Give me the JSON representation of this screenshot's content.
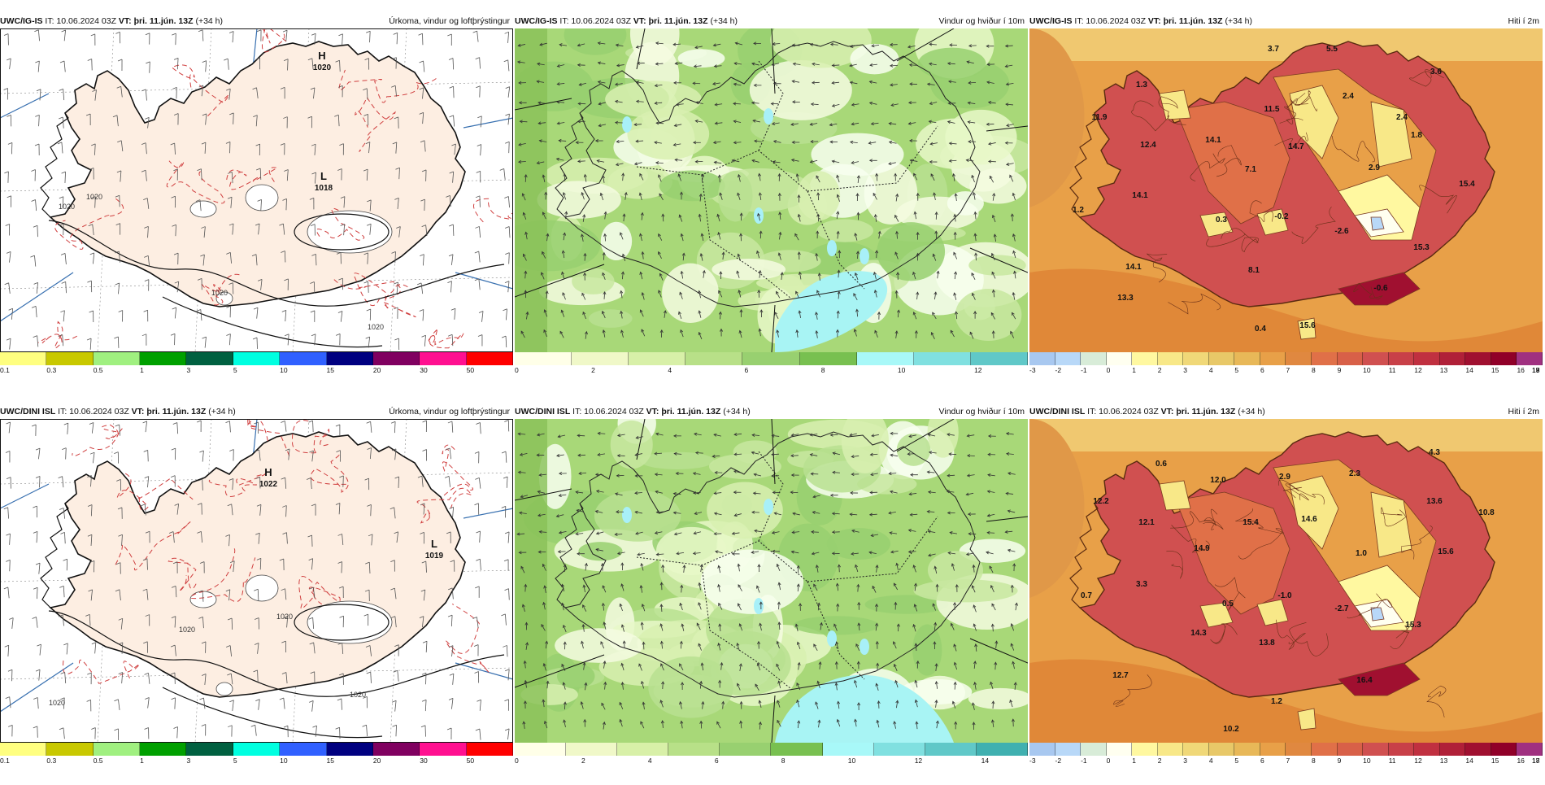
{
  "panels": [
    {
      "id": "p1",
      "model": "UWC/IG-IS",
      "it_label": "IT: 10.06.2024 03Z",
      "vt_label": "VT: þri. 11.jún. 13Z",
      "lead": "(+34 h)",
      "title": "Úrkoma, vindur og loftþrýstingur",
      "kind": "precip",
      "pressure_centers": [
        {
          "type": "H",
          "value": "1020"
        },
        {
          "type": "L",
          "value": "1018"
        }
      ],
      "isobar_labels": [
        "1020",
        "1020",
        "1020",
        "1020"
      ],
      "colorbar": {
        "colors": [
          "#ffff80",
          "#c8c800",
          "#a0f080",
          "#00a000",
          "#006040",
          "#00ffe0",
          "#3060ff",
          "#000080",
          "#800060",
          "#ff1090",
          "#ff0000"
        ],
        "ticks": [
          "0.1",
          "0.3",
          "0.5",
          "1",
          "3",
          "5",
          "10",
          "15",
          "20",
          "30",
          "50"
        ]
      }
    },
    {
      "id": "p2",
      "model": "UWC/IG-IS",
      "it_label": "IT: 10.06.2024 03Z",
      "vt_label": "VT: þri. 11.jún. 13Z",
      "lead": "(+34 h)",
      "title": "Vindur og hviður í 10m",
      "kind": "wind",
      "colorbar": {
        "colors": [
          "#ffffe8",
          "#f0f8c8",
          "#d8f0a8",
          "#b8e088",
          "#98d070",
          "#78c050",
          "#a8f8f8",
          "#80e0e0",
          "#60c8c8"
        ],
        "ticks": [
          "0",
          "2",
          "4",
          "6",
          "8",
          "10",
          "12"
        ]
      }
    },
    {
      "id": "p3",
      "model": "UWC/IG-IS",
      "it_label": "IT: 10.06.2024 03Z",
      "vt_label": "VT: þri. 11.jún. 13Z",
      "lead": "(+34 h)",
      "title": "Hiti í 2m",
      "kind": "temp",
      "temps": [
        {
          "v": "3.7"
        },
        {
          "v": "5.5"
        },
        {
          "v": "1.3"
        },
        {
          "v": "3.6"
        },
        {
          "v": "11.9"
        },
        {
          "v": "11.5"
        },
        {
          "v": "2.4"
        },
        {
          "v": "12.4"
        },
        {
          "v": "14.1"
        },
        {
          "v": "14.7"
        },
        {
          "v": "2.4"
        },
        {
          "v": "1.8"
        },
        {
          "v": "7.1"
        },
        {
          "v": "2.9"
        },
        {
          "v": "14.1"
        },
        {
          "v": "15.4"
        },
        {
          "v": "1.2"
        },
        {
          "v": "0.3"
        },
        {
          "v": "-0.2"
        },
        {
          "v": "-2.6"
        },
        {
          "v": "15.3"
        },
        {
          "v": "14.1"
        },
        {
          "v": "8.1"
        },
        {
          "v": "-0.6"
        },
        {
          "v": "13.3"
        },
        {
          "v": "15.6"
        },
        {
          "v": "0.4"
        }
      ],
      "colorbar": {
        "colors": [
          "#a8c8f0",
          "#b8d8f8",
          "#d8ecd8",
          "#fffff0",
          "#fff8a0",
          "#f8e888",
          "#f0d878",
          "#e8c868",
          "#e8b858",
          "#e8a048",
          "#e08840",
          "#e07048",
          "#d86048",
          "#d05050",
          "#c84048",
          "#c03040",
          "#b02038",
          "#a01030",
          "#900028",
          "#a03080"
        ],
        "ticks": [
          "-3",
          "-2",
          "-1",
          "0",
          "1",
          "2",
          "3",
          "4",
          "5",
          "6",
          "7",
          "8",
          "9",
          "10",
          "11",
          "12",
          "13",
          "14",
          "15",
          "16",
          "17",
          "18",
          "19"
        ]
      }
    },
    {
      "id": "p4",
      "model": "UWC/DINI ISL",
      "it_label": "IT: 10.06.2024 03Z",
      "vt_label": "VT: þri. 11.jún. 13Z",
      "lead": "(+34 h)",
      "title": "Úrkoma, vindur og loftþrýstingur",
      "kind": "precip",
      "pressure_centers": [
        {
          "type": "H",
          "value": "1022"
        },
        {
          "type": "L",
          "value": "1019"
        }
      ],
      "isobar_labels": [
        "1020",
        "1020",
        "1020",
        "1020"
      ],
      "colorbar": {
        "colors": [
          "#ffff80",
          "#c8c800",
          "#a0f080",
          "#00a000",
          "#006040",
          "#00ffe0",
          "#3060ff",
          "#000080",
          "#800060",
          "#ff1090",
          "#ff0000"
        ],
        "ticks": [
          "0.1",
          "0.3",
          "0.5",
          "1",
          "3",
          "5",
          "10",
          "15",
          "20",
          "30",
          "50"
        ]
      }
    },
    {
      "id": "p5",
      "model": "UWC/DINI ISL",
      "it_label": "IT: 10.06.2024 03Z",
      "vt_label": "VT: þri. 11.jún. 13Z",
      "lead": "(+34 h)",
      "title": "Vindur og hviður í 10m",
      "kind": "wind",
      "colorbar": {
        "colors": [
          "#ffffe8",
          "#f0f8c8",
          "#d8f0a8",
          "#b8e088",
          "#98d070",
          "#78c050",
          "#a8f8f8",
          "#80e0e0",
          "#60c8c8",
          "#40b0b0"
        ],
        "ticks": [
          "0",
          "2",
          "4",
          "6",
          "8",
          "10",
          "12",
          "14"
        ]
      }
    },
    {
      "id": "p6",
      "model": "UWC/DINI ISL",
      "it_label": "IT: 10.06.2024 03Z",
      "vt_label": "VT: þri. 11.jún. 13Z",
      "lead": "(+34 h)",
      "title": "Hiti í 2m",
      "kind": "temp",
      "temps": [
        {
          "v": "0.6"
        },
        {
          "v": "4.3"
        },
        {
          "v": "12.0"
        },
        {
          "v": "2.9"
        },
        {
          "v": "2.3"
        },
        {
          "v": "12.2"
        },
        {
          "v": "13.6"
        },
        {
          "v": "10.8"
        },
        {
          "v": "12.1"
        },
        {
          "v": "15.4"
        },
        {
          "v": "14.6"
        },
        {
          "v": "14.9"
        },
        {
          "v": "1.0"
        },
        {
          "v": "15.6"
        },
        {
          "v": "3.3"
        },
        {
          "v": "0.7"
        },
        {
          "v": "0.5"
        },
        {
          "v": "-1.0"
        },
        {
          "v": "-2.7"
        },
        {
          "v": "15.3"
        },
        {
          "v": "14.3"
        },
        {
          "v": "13.8"
        },
        {
          "v": "12.7"
        },
        {
          "v": "16.4"
        },
        {
          "v": "1.2"
        },
        {
          "v": "10.2"
        }
      ],
      "colorbar": {
        "colors": [
          "#a8c8f0",
          "#b8d8f8",
          "#d8ecd8",
          "#fffff0",
          "#fff8a0",
          "#f8e888",
          "#f0d878",
          "#e8c868",
          "#e8b858",
          "#e8a048",
          "#e08840",
          "#e07048",
          "#d86048",
          "#d05050",
          "#c84048",
          "#c03040",
          "#b02038",
          "#a01030",
          "#900028",
          "#a03080"
        ],
        "ticks": [
          "-3",
          "-2",
          "-1",
          "0",
          "1",
          "2",
          "3",
          "4",
          "5",
          "6",
          "7",
          "8",
          "9",
          "10",
          "11",
          "12",
          "13",
          "14",
          "15",
          "16",
          "17",
          "18"
        ]
      }
    }
  ]
}
